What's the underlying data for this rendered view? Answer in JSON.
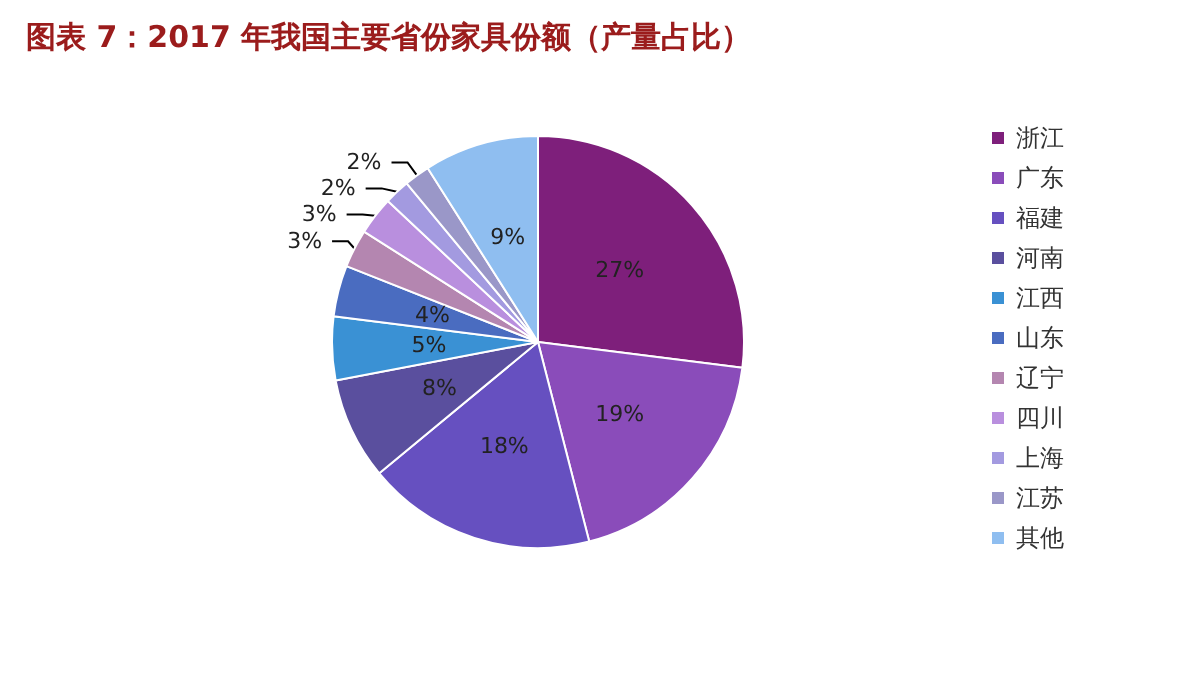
{
  "chart_data": {
    "type": "pie",
    "title": "图表 7：2017 年我国主要省份家具份额（产量占比）",
    "categories": [
      "浙江",
      "广东",
      "福建",
      "河南",
      "江西",
      "山东",
      "辽宁",
      "四川",
      "上海",
      "江苏",
      "其他"
    ],
    "values": [
      27,
      19,
      18,
      8,
      5,
      4,
      3,
      3,
      2,
      2,
      9
    ],
    "colors": [
      "#7e1f7b",
      "#8a4cba",
      "#6650c0",
      "#5a4f9e",
      "#3a91d4",
      "#4a6cc0",
      "#b486b0",
      "#b98fde",
      "#a39ae0",
      "#9a97c8",
      "#8fbef0"
    ],
    "value_labels": [
      "27%",
      "19%",
      "18%",
      "8%",
      "5%",
      "4%",
      "3%",
      "3%",
      "2%",
      "2%",
      "9%"
    ],
    "legend": "right"
  }
}
